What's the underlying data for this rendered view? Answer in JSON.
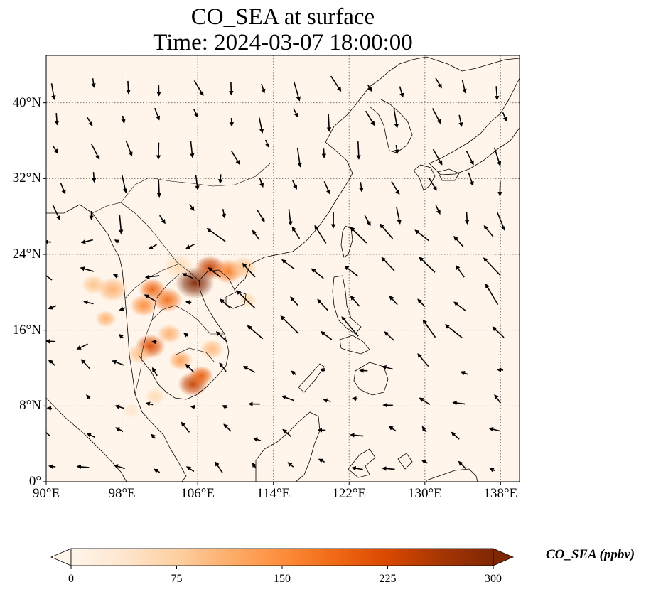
{
  "title": {
    "line1": "CO_SEA at surface",
    "line2": "Time: 2024-03-07 18:00:00"
  },
  "map": {
    "extent": {
      "lon": [
        90,
        140
      ],
      "lat": [
        0,
        45
      ]
    },
    "gridlines": "dotted",
    "lat_ticks": [
      {
        "value": 0,
        "label": "0°"
      },
      {
        "value": 8,
        "label": "8°N"
      },
      {
        "value": 16,
        "label": "16°N"
      },
      {
        "value": 24,
        "label": "24°N"
      },
      {
        "value": 32,
        "label": "32°N"
      },
      {
        "value": 40,
        "label": "40°N"
      }
    ],
    "lon_ticks": [
      {
        "value": 90,
        "label": "90°E"
      },
      {
        "value": 98,
        "label": "98°E"
      },
      {
        "value": 106,
        "label": "106°E"
      },
      {
        "value": 114,
        "label": "114°E"
      },
      {
        "value": 122,
        "label": "122°E"
      },
      {
        "value": 130,
        "label": "130°E"
      },
      {
        "value": 138,
        "label": "138°E"
      }
    ],
    "colors": {
      "background": "#fff5ea",
      "coast": "#000000",
      "grid": "#777777",
      "vector": "#000000"
    },
    "hotspots": [
      {
        "lon": 105.7,
        "lat": 21.0,
        "r": 1.3,
        "level": 300
      },
      {
        "lon": 107.3,
        "lat": 22.6,
        "r": 1.0,
        "level": 240
      },
      {
        "lon": 109.2,
        "lat": 22.2,
        "r": 1.0,
        "level": 170
      },
      {
        "lon": 101.2,
        "lat": 20.3,
        "r": 0.9,
        "level": 190
      },
      {
        "lon": 102.8,
        "lat": 19.2,
        "r": 1.0,
        "level": 180
      },
      {
        "lon": 100.3,
        "lat": 18.6,
        "r": 0.9,
        "level": 150
      },
      {
        "lon": 97.0,
        "lat": 20.3,
        "r": 1.0,
        "level": 110
      },
      {
        "lon": 95.0,
        "lat": 20.8,
        "r": 0.8,
        "level": 90
      },
      {
        "lon": 96.3,
        "lat": 17.2,
        "r": 0.7,
        "level": 110
      },
      {
        "lon": 101.0,
        "lat": 14.3,
        "r": 1.0,
        "level": 220
      },
      {
        "lon": 103.0,
        "lat": 15.6,
        "r": 0.8,
        "level": 110
      },
      {
        "lon": 104.2,
        "lat": 12.8,
        "r": 0.8,
        "level": 130
      },
      {
        "lon": 105.5,
        "lat": 10.3,
        "r": 1.0,
        "level": 240
      },
      {
        "lon": 106.4,
        "lat": 11.2,
        "r": 0.8,
        "level": 200
      },
      {
        "lon": 107.5,
        "lat": 14.0,
        "r": 0.8,
        "level": 100
      },
      {
        "lon": 99.8,
        "lat": 13.5,
        "r": 0.8,
        "level": 90
      },
      {
        "lon": 101.5,
        "lat": 9.0,
        "r": 0.7,
        "level": 60
      },
      {
        "lon": 104.0,
        "lat": 22.7,
        "r": 1.0,
        "level": 60
      },
      {
        "lon": 110.8,
        "lat": 22.6,
        "r": 0.9,
        "level": 90
      },
      {
        "lon": 111.3,
        "lat": 19.2,
        "r": 0.6,
        "level": 70
      },
      {
        "lon": 99.0,
        "lat": 7.5,
        "r": 0.6,
        "level": 40
      }
    ]
  },
  "colorbar": {
    "title": "CO_SEA (ppbv)",
    "min": 0,
    "max": 300,
    "ticks": [
      {
        "value": 0,
        "label": "0"
      },
      {
        "value": 75,
        "label": "75"
      },
      {
        "value": 150,
        "label": "150"
      },
      {
        "value": 225,
        "label": "225"
      },
      {
        "value": 300,
        "label": "300"
      }
    ],
    "colormap": [
      "#fff5eb",
      "#fee6ce",
      "#fdd0a2",
      "#fdae6b",
      "#fd8d3c",
      "#f16913",
      "#d94801",
      "#a63603",
      "#7f2704"
    ],
    "extend": "both"
  }
}
